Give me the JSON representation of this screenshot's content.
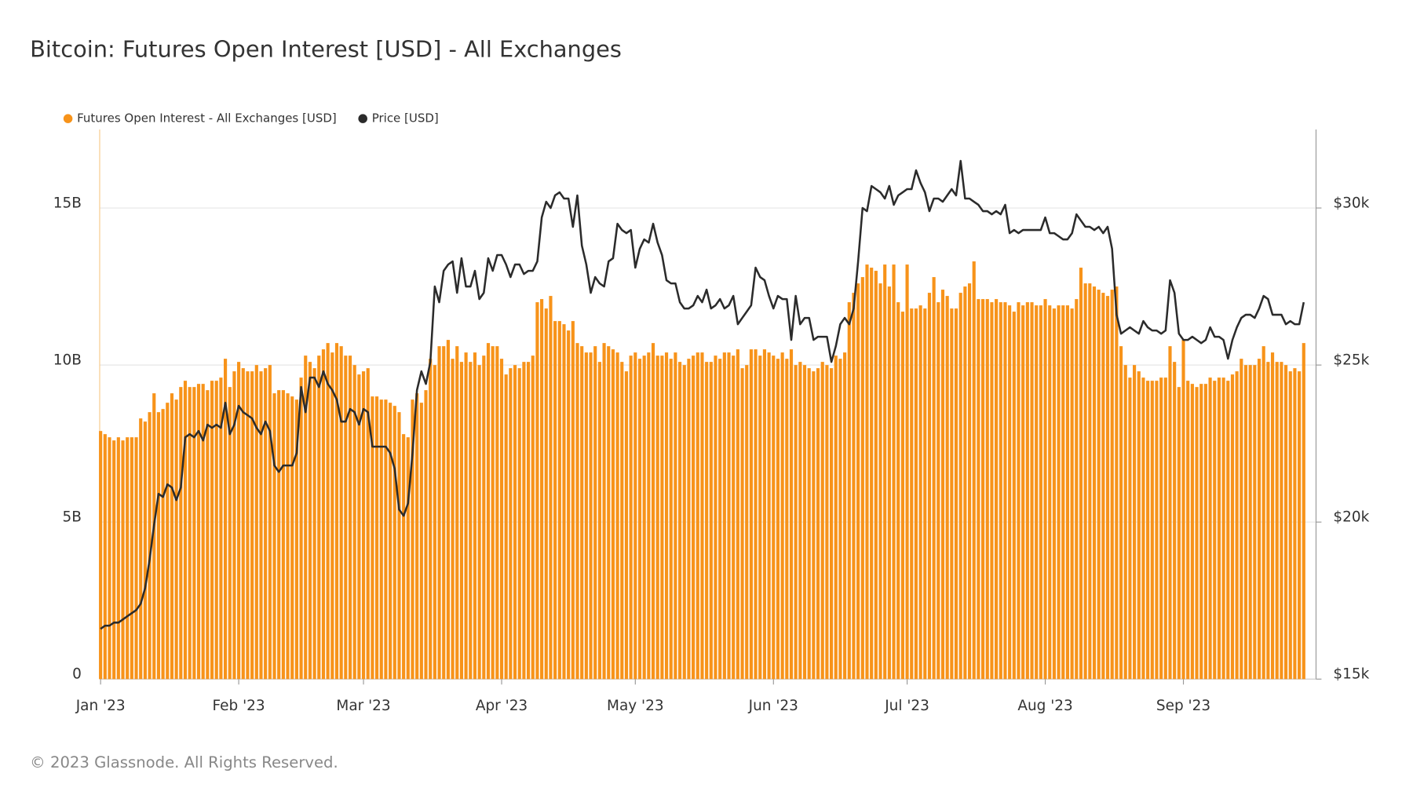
{
  "chart_data": {
    "type": "bar-line",
    "title": "Bitcoin: Futures Open Interest [USD] - All Exchanges",
    "source": "© 2023 Glassnode. All Rights Reserved.",
    "categories": [
      "Jan '23",
      null,
      null,
      null,
      null,
      null,
      null,
      null,
      null,
      null,
      null,
      null,
      null,
      null,
      null,
      null,
      null,
      null,
      null,
      null,
      null,
      null,
      null,
      null,
      null,
      null,
      null,
      null,
      null,
      null,
      null,
      "Feb '23",
      null,
      null,
      null,
      null,
      null,
      null,
      null,
      null,
      null,
      null,
      null,
      null,
      null,
      null,
      null,
      null,
      null,
      null,
      null,
      null,
      null,
      null,
      null,
      null,
      null,
      null,
      null,
      "Mar '23",
      null,
      null,
      null,
      null,
      null,
      null,
      null,
      null,
      null,
      null,
      null,
      null,
      null,
      null,
      null,
      null,
      null,
      null,
      null,
      null,
      null,
      null,
      null,
      null,
      null,
      null,
      null,
      null,
      null,
      null,
      "Apr '23",
      null,
      null,
      null,
      null,
      null,
      null,
      null,
      null,
      null,
      null,
      null,
      null,
      null,
      null,
      null,
      null,
      null,
      null,
      null,
      null,
      null,
      null,
      null,
      null,
      null,
      null,
      null,
      null,
      null,
      "May '23",
      null,
      null,
      null,
      null,
      null,
      null,
      null,
      null,
      null,
      null,
      null,
      null,
      null,
      null,
      null,
      null,
      null,
      null,
      null,
      null,
      null,
      null,
      null,
      null,
      null,
      null,
      null,
      null,
      null,
      null,
      "Jun '23",
      null,
      null,
      null,
      null,
      null,
      null,
      null,
      null,
      null,
      null,
      null,
      null,
      null,
      null,
      null,
      null,
      null,
      null,
      null,
      null,
      null,
      null,
      null,
      null,
      null,
      null,
      null,
      null,
      null,
      "Jul '23",
      null,
      null,
      null,
      null,
      null,
      null,
      null,
      null,
      null,
      null,
      null,
      null,
      null,
      null,
      null,
      null,
      null,
      null,
      null,
      null,
      null,
      null,
      null,
      null,
      null,
      null,
      null,
      null,
      null,
      null,
      "Aug '23",
      null,
      null,
      null,
      null,
      null,
      null,
      null,
      null,
      null,
      null,
      null,
      null,
      null,
      null,
      null,
      null,
      null,
      null,
      null,
      null,
      null,
      null,
      null,
      null,
      null,
      null,
      null,
      null,
      null,
      null,
      "Sep '23",
      null,
      null,
      null,
      null,
      null,
      null,
      null,
      null,
      null,
      null,
      null,
      null,
      null,
      null,
      null,
      null,
      null,
      null,
      null,
      null,
      null,
      null,
      null,
      null,
      null,
      null,
      null
    ],
    "series": [
      {
        "name": "Futures Open Interest - All Exchanges [USD]",
        "type": "bar",
        "color": "#f7931a",
        "values": [
          7900000000.0,
          7800000000.0,
          7700000000.0,
          7600000000.0,
          7700000000.0,
          7600000000.0,
          7700000000.0,
          7700000000.0,
          7700000000.0,
          8300000000.0,
          8200000000.0,
          8500000000.0,
          9100000000.0,
          8500000000.0,
          8600000000.0,
          8800000000.0,
          9100000000.0,
          8900000000.0,
          9300000000.0,
          9500000000.0,
          9300000000.0,
          9300000000.0,
          9400000000.0,
          9400000000.0,
          9200000000.0,
          9500000000.0,
          9500000000.0,
          9600000000.0,
          10200000000.0,
          9300000000.0,
          9800000000.0,
          10100000000.0,
          9900000000.0,
          9800000000.0,
          9800000000.0,
          10000000000.0,
          9800000000.0,
          9900000000.0,
          10000000000.0,
          9100000000.0,
          9200000000.0,
          9200000000.0,
          9100000000.0,
          9000000000.0,
          8900000000.0,
          9600000000.0,
          10300000000.0,
          10100000000.0,
          9900000000.0,
          10300000000.0,
          10500000000.0,
          10700000000.0,
          10400000000.0,
          10700000000.0,
          10600000000.0,
          10300000000.0,
          10300000000.0,
          10000000000.0,
          9700000000.0,
          9800000000.0,
          9900000000.0,
          9000000000.0,
          9000000000.0,
          8900000000.0,
          8900000000.0,
          8800000000.0,
          8700000000.0,
          8500000000.0,
          7800000000.0,
          7700000000.0,
          8900000000.0,
          9100000000.0,
          8800000000.0,
          9200000000.0,
          10200000000.0,
          10000000000.0,
          10600000000.0,
          10600000000.0,
          10800000000.0,
          10200000000.0,
          10600000000.0,
          10100000000.0,
          10400000000.0,
          10100000000.0,
          10400000000.0,
          10000000000.0,
          10300000000.0,
          10700000000.0,
          10600000000.0,
          10600000000.0,
          10200000000.0,
          9700000000.0,
          9900000000.0,
          10000000000.0,
          9900000000.0,
          10100000000.0,
          10100000000.0,
          10300000000.0,
          12000000000.0,
          12100000000.0,
          11800000000.0,
          12200000000.0,
          11400000000.0,
          11400000000.0,
          11300000000.0,
          11100000000.0,
          11400000000.0,
          10700000000.0,
          10600000000.0,
          10400000000.0,
          10400000000.0,
          10600000000.0,
          10100000000.0,
          10700000000.0,
          10600000000.0,
          10500000000.0,
          10400000000.0,
          10100000000.0,
          9800000000.0,
          10300000000.0,
          10400000000.0,
          10200000000.0,
          10300000000.0,
          10400000000.0,
          10700000000.0,
          10300000000.0,
          10300000000.0,
          10400000000.0,
          10200000000.0,
          10400000000.0,
          10100000000.0,
          10000000000.0,
          10200000000.0,
          10300000000.0,
          10400000000.0,
          10400000000.0,
          10100000000.0,
          10100000000.0,
          10300000000.0,
          10200000000.0,
          10400000000.0,
          10400000000.0,
          10300000000.0,
          10500000000.0,
          9900000000.0,
          10000000000.0,
          10500000000.0,
          10500000000.0,
          10300000000.0,
          10500000000.0,
          10400000000.0,
          10300000000.0,
          10200000000.0,
          10400000000.0,
          10200000000.0,
          10500000000.0,
          10000000000.0,
          10100000000.0,
          10000000000.0,
          9900000000.0,
          9800000000.0,
          9900000000.0,
          10100000000.0,
          10000000000.0,
          9900000000.0,
          10300000000.0,
          10200000000.0,
          10400000000.0,
          12000000000.0,
          12300000000.0,
          12600000000.0,
          12800000000.0,
          13200000000.0,
          13100000000.0,
          13000000000.0,
          12600000000.0,
          13200000000.0,
          12500000000.0,
          13200000000.0,
          12000000000.0,
          11700000000.0,
          13200000000.0,
          11800000000.0,
          11800000000.0,
          11900000000.0,
          11800000000.0,
          12300000000.0,
          12800000000.0,
          12000000000.0,
          12400000000.0,
          12200000000.0,
          11800000000.0,
          11800000000.0,
          12300000000.0,
          12500000000.0,
          12600000000.0,
          13300000000.0,
          12100000000.0,
          12100000000.0,
          12100000000.0,
          12000000000.0,
          12100000000.0,
          12000000000.0,
          12000000000.0,
          11900000000.0,
          11700000000.0,
          12000000000.0,
          11900000000.0,
          12000000000.0,
          12000000000.0,
          11900000000.0,
          11900000000.0,
          12100000000.0,
          11900000000.0,
          11800000000.0,
          11900000000.0,
          11900000000.0,
          11900000000.0,
          11800000000.0,
          12100000000.0,
          13100000000.0,
          12600000000.0,
          12600000000.0,
          12500000000.0,
          12400000000.0,
          12300000000.0,
          12200000000.0,
          12400000000.0,
          12500000000.0,
          10600000000.0,
          10000000000.0,
          9600000000.0,
          10000000000.0,
          9800000000.0,
          9600000000.0,
          9500000000.0,
          9500000000.0,
          9500000000.0,
          9600000000.0,
          9600000000.0,
          10600000000.0,
          10100000000.0,
          9300000000.0,
          10800000000.0,
          9500000000.0,
          9400000000.0,
          9300000000.0,
          9400000000.0,
          9400000000.0,
          9600000000.0,
          9500000000.0,
          9600000000.0,
          9600000000.0,
          9500000000.0,
          9700000000.0,
          9800000000.0,
          10200000000.0,
          10000000000.0,
          10000000000.0,
          10000000000.0,
          10200000000.0,
          10600000000.0,
          10100000000.0,
          10400000000.0,
          10100000000.0,
          10100000000.0,
          10000000000.0,
          9800000000.0,
          9900000000.0,
          9800000000.0,
          10700000000.0
        ]
      },
      {
        "name": "Price [USD]",
        "type": "line",
        "axis": "y2",
        "color": "#2b2b2b",
        "values": [
          16600,
          16700,
          16700,
          16800,
          16800,
          16900,
          17000,
          17100,
          17200,
          17400,
          17900,
          18800,
          19900,
          20900,
          20800,
          21200,
          21100,
          20700,
          21100,
          22700,
          22800,
          22700,
          22900,
          22600,
          23100,
          23000,
          23100,
          23000,
          23800,
          22800,
          23100,
          23700,
          23500,
          23400,
          23300,
          23000,
          22800,
          23200,
          22900,
          21800,
          21600,
          21800,
          21800,
          21800,
          22200,
          24300,
          23500,
          24600,
          24600,
          24300,
          24800,
          24400,
          24200,
          23900,
          23200,
          23200,
          23600,
          23500,
          23100,
          23600,
          23500,
          22400,
          22400,
          22400,
          22400,
          22200,
          21700,
          20400,
          20200,
          20600,
          22200,
          24200,
          24800,
          24400,
          25100,
          27500,
          27000,
          28000,
          28200,
          28300,
          27300,
          28400,
          27500,
          27500,
          28000,
          27100,
          27300,
          28400,
          28000,
          28500,
          28500,
          28200,
          27800,
          28200,
          28200,
          27900,
          28000,
          28000,
          28300,
          29700,
          30200,
          30000,
          30400,
          30500,
          30300,
          30300,
          29400,
          30400,
          28800,
          28200,
          27300,
          27800,
          27600,
          27500,
          28300,
          28400,
          29500,
          29300,
          29200,
          29300,
          28100,
          28700,
          29000,
          28900,
          29500,
          28900,
          28500,
          27700,
          27600,
          27600,
          27000,
          26800,
          26800,
          26900,
          27200,
          27000,
          27400,
          26800,
          26900,
          27100,
          26800,
          26900,
          27200,
          26300,
          26500,
          26700,
          26900,
          28100,
          27800,
          27700,
          27200,
          26800,
          27200,
          27100,
          27100,
          25800,
          27200,
          26300,
          26500,
          26500,
          25800,
          25900,
          25900,
          25900,
          25100,
          25600,
          26300,
          26500,
          26300,
          26800,
          28300,
          30000,
          29900,
          30700,
          30600,
          30500,
          30300,
          30700,
          30100,
          30400,
          30500,
          30600,
          30600,
          31200,
          30800,
          30500,
          29900,
          30300,
          30300,
          30200,
          30400,
          30600,
          30400,
          31500,
          30300,
          30300,
          30200,
          30100,
          29900,
          29900,
          29800,
          29900,
          29800,
          30100,
          29200,
          29300,
          29200,
          29300,
          29300,
          29300,
          29300,
          29300,
          29700,
          29200,
          29200,
          29100,
          29000,
          29000,
          29200,
          29800,
          29600,
          29400,
          29400,
          29300,
          29400,
          29200,
          29400,
          28700,
          26600,
          26000,
          26100,
          26200,
          26100,
          26000,
          26400,
          26200,
          26100,
          26100,
          26000,
          26100,
          27700,
          27300,
          26000,
          25800,
          25800,
          25900,
          25800,
          25700,
          25800,
          26200,
          25900,
          25900,
          25800,
          25200,
          25800,
          26200,
          26500,
          26600,
          26600,
          26500,
          26800,
          27200,
          27100,
          26600,
          26600,
          26600,
          26300,
          26400,
          26300,
          26300,
          27000
        ]
      }
    ],
    "ylim": [
      0,
      17500000000.0
    ],
    "yticks": [
      0,
      {
        "value": 5000000000.0,
        "label": "5B"
      },
      {
        "value": 10000000000.0,
        "label": "10B"
      },
      {
        "value": 15000000000.0,
        "label": "15B"
      }
    ],
    "y2lim": [
      15000,
      32500
    ],
    "y2ticks": [
      {
        "value": 15000,
        "label": "$15k"
      },
      {
        "value": 20000,
        "label": "$20k"
      },
      {
        "value": 25000,
        "label": "$25k"
      },
      {
        "value": 30000,
        "label": "$30k"
      }
    ],
    "grid": true
  }
}
